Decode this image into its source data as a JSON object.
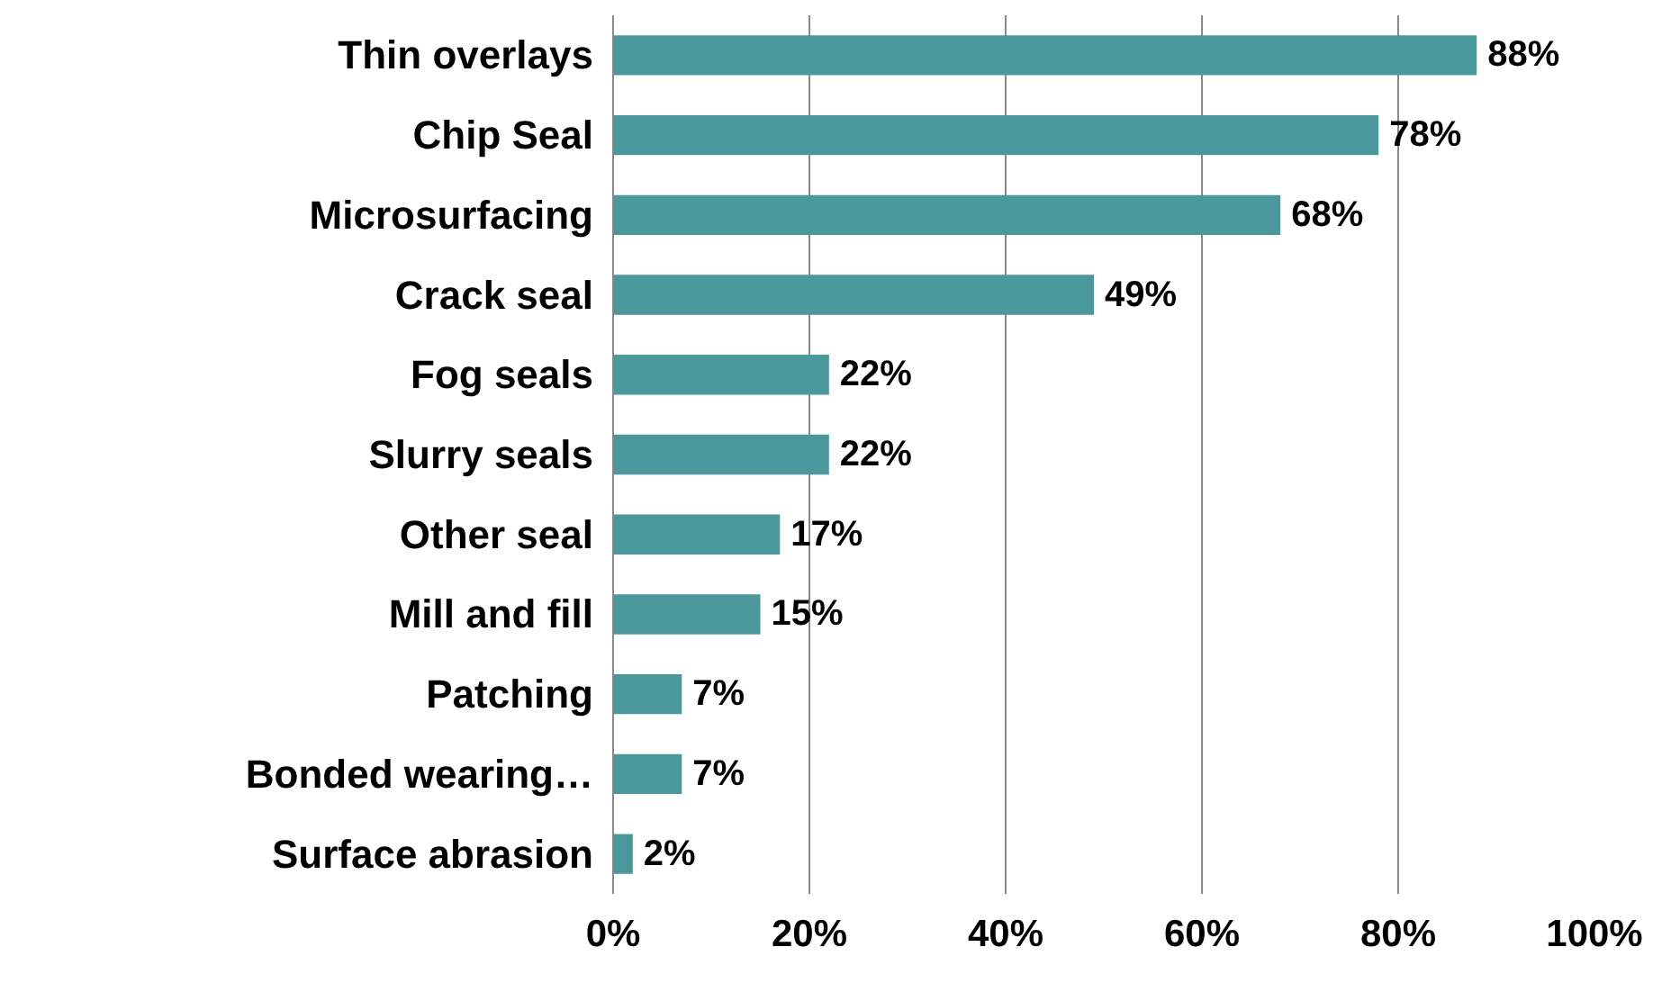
{
  "chart_data": {
    "type": "bar",
    "orientation": "horizontal",
    "categories": [
      "Thin overlays",
      "Chip Seal",
      "Microsurfacing",
      "Crack seal",
      "Fog seals",
      "Slurry seals",
      "Other seal",
      "Mill and fill",
      "Patching",
      "Bonded wearing…",
      "Surface abrasion"
    ],
    "values": [
      88,
      78,
      68,
      49,
      22,
      22,
      17,
      15,
      7,
      7,
      2
    ],
    "value_labels": [
      "88%",
      "78%",
      "68%",
      "49%",
      "22%",
      "22%",
      "17%",
      "15%",
      "7%",
      "7%",
      "2%"
    ],
    "color": "#4a979c",
    "xlim": [
      0,
      100
    ],
    "xticks": [
      {
        "value": 0,
        "label": "0%"
      },
      {
        "value": 20,
        "label": "20%"
      },
      {
        "value": 40,
        "label": "40%"
      },
      {
        "value": 60,
        "label": "60%"
      },
      {
        "value": 80,
        "label": "80%"
      },
      {
        "value": 100,
        "label": "100%"
      }
    ],
    "grid": "x"
  }
}
